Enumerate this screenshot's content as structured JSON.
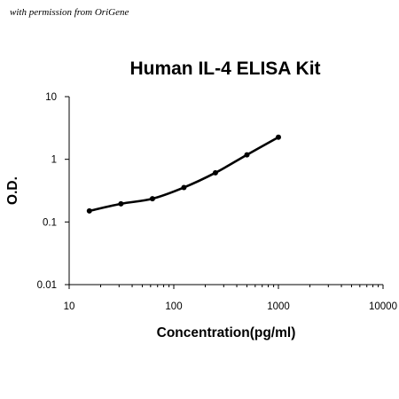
{
  "watermark": "with permission from OriGene",
  "chart_data": {
    "type": "line",
    "title": "Human IL-4 ELISA Kit",
    "xlabel": "Concentration(pg/ml)",
    "ylabel": "O.D.",
    "xscale": "log",
    "yscale": "log",
    "xlim": [
      10,
      10000
    ],
    "ylim": [
      0.01,
      10
    ],
    "xticks": [
      "10",
      "100",
      "1000",
      "10000"
    ],
    "yticks": [
      "0.01",
      "0.1",
      "1",
      "10"
    ],
    "grid": false,
    "legend": "none",
    "series": [
      {
        "x": [
          15.6,
          31.25,
          62.5,
          125,
          250,
          500,
          1000
        ],
        "y": [
          0.15,
          0.195,
          0.235,
          0.355,
          0.61,
          1.18,
          2.25
        ],
        "color": "#000000"
      }
    ]
  }
}
